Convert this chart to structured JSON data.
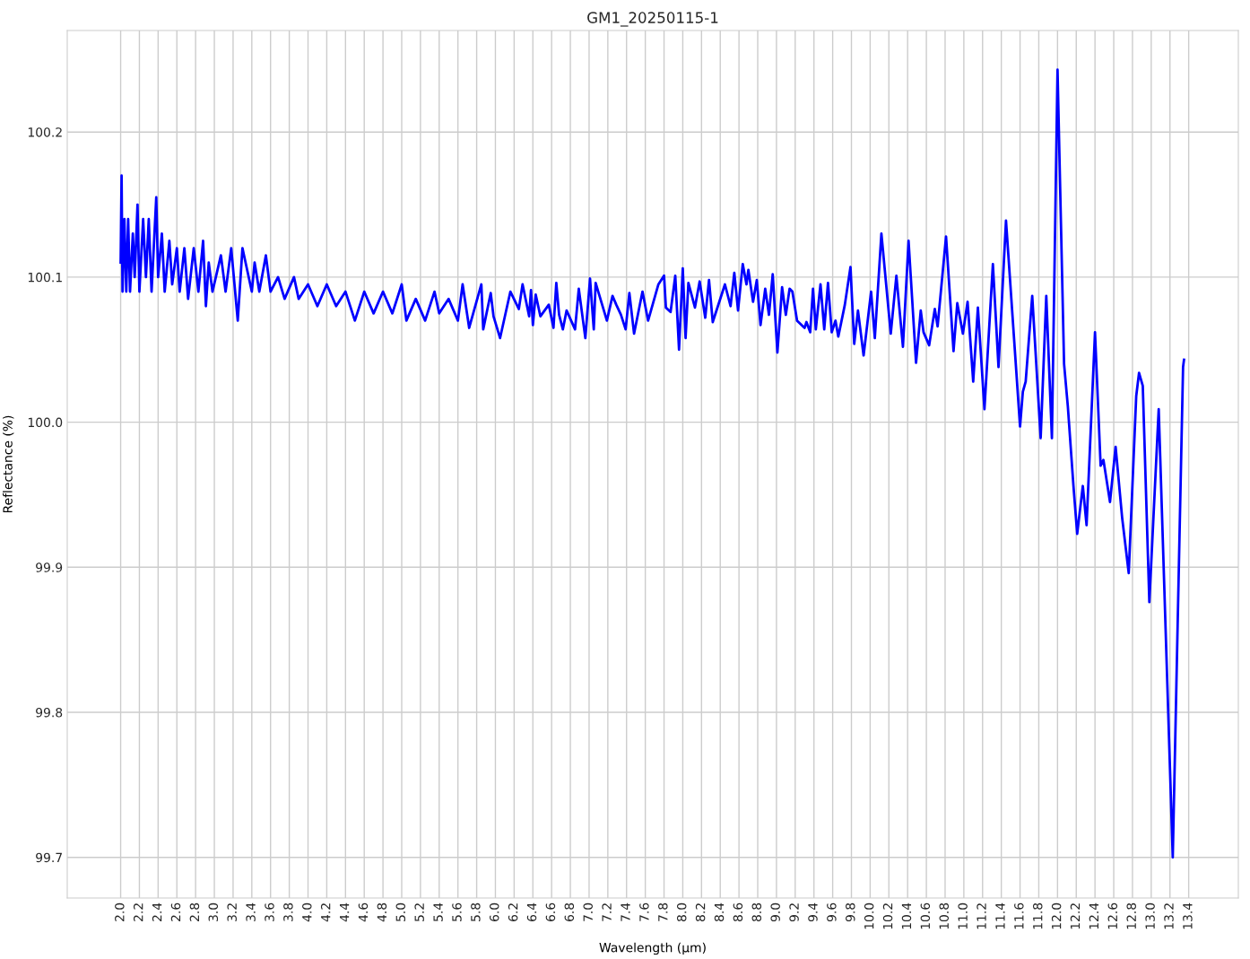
{
  "chart_data": {
    "type": "line",
    "title": "GM1_20250115-1",
    "xlabel": "Wavelength (μm)",
    "ylabel": "Reflectance (%)",
    "series": [
      {
        "color": "#0000ff",
        "x": [
          2.0,
          2.01,
          2.02,
          2.04,
          2.06,
          2.08,
          2.1,
          2.13,
          2.15,
          2.18,
          2.2,
          2.24,
          2.27,
          2.3,
          2.33,
          2.38,
          2.4,
          2.44,
          2.47,
          2.52,
          2.55,
          2.6,
          2.63,
          2.68,
          2.72,
          2.78,
          2.83,
          2.88,
          2.91,
          2.94,
          2.98,
          3.07,
          3.12,
          3.18,
          3.25,
          3.3,
          3.4,
          3.43,
          3.48,
          3.55,
          3.6,
          3.68,
          3.75,
          3.85,
          3.9,
          4.0,
          4.1,
          4.2,
          4.3,
          4.4,
          4.5,
          4.6,
          4.7,
          4.8,
          4.9,
          5.0,
          5.05,
          5.15,
          5.25,
          5.35,
          5.4,
          5.5,
          5.6,
          5.65,
          5.72,
          5.85,
          5.87,
          5.95,
          5.98,
          6.05,
          6.16,
          6.25,
          6.29,
          6.36,
          6.38,
          6.4,
          6.43,
          6.48,
          6.57,
          6.62,
          6.65,
          6.68,
          6.72,
          6.76,
          6.85,
          6.89,
          6.96,
          7.01,
          7.05,
          7.07,
          7.19,
          7.25,
          7.29,
          7.34,
          7.39,
          7.43,
          7.48,
          7.57,
          7.63,
          7.74,
          7.8,
          7.82,
          7.87,
          7.92,
          7.96,
          8.0,
          8.03,
          8.06,
          8.13,
          8.18,
          8.24,
          8.28,
          8.32,
          8.45,
          8.51,
          8.55,
          8.59,
          8.64,
          8.68,
          8.7,
          8.75,
          8.79,
          8.83,
          8.88,
          8.92,
          8.96,
          9.01,
          9.06,
          9.1,
          9.14,
          9.17,
          9.22,
          9.3,
          9.32,
          9.36,
          9.39,
          9.42,
          9.47,
          9.51,
          9.55,
          9.59,
          9.63,
          9.66,
          9.73,
          9.79,
          9.83,
          9.87,
          9.93,
          10.01,
          10.05,
          10.12,
          10.22,
          10.28,
          10.35,
          10.41,
          10.49,
          10.54,
          10.57,
          10.63,
          10.69,
          10.72,
          10.81,
          10.89,
          10.93,
          10.99,
          11.04,
          11.1,
          11.15,
          11.22,
          11.31,
          11.37,
          11.45,
          11.6,
          11.63,
          11.66,
          11.73,
          11.82,
          11.88,
          11.94,
          12.0,
          12.07,
          12.11,
          12.17,
          12.21,
          12.27,
          12.31,
          12.4,
          12.46,
          12.49,
          12.56,
          12.62,
          12.69,
          12.76,
          12.84,
          12.87,
          12.91,
          12.98,
          13.08,
          13.23,
          13.34,
          13.35
        ],
        "values": [
          100.11,
          100.17,
          100.09,
          100.14,
          100.09,
          100.14,
          100.09,
          100.13,
          100.1,
          100.15,
          100.09,
          100.14,
          100.1,
          100.14,
          100.09,
          100.155,
          100.1,
          100.13,
          100.09,
          100.125,
          100.095,
          100.12,
          100.09,
          100.12,
          100.085,
          100.12,
          100.09,
          100.125,
          100.08,
          100.11,
          100.09,
          100.115,
          100.09,
          100.12,
          100.07,
          100.12,
          100.09,
          100.11,
          100.09,
          100.115,
          100.09,
          100.1,
          100.085,
          100.1,
          100.085,
          100.095,
          100.08,
          100.095,
          100.08,
          100.09,
          100.07,
          100.09,
          100.075,
          100.09,
          100.075,
          100.095,
          100.07,
          100.085,
          100.07,
          100.09,
          100.075,
          100.085,
          100.07,
          100.095,
          100.065,
          100.095,
          100.064,
          100.089,
          100.073,
          100.058,
          100.09,
          100.078,
          100.095,
          100.073,
          100.091,
          100.067,
          100.088,
          100.073,
          100.081,
          100.065,
          100.096,
          100.074,
          100.064,
          100.077,
          100.064,
          100.092,
          100.058,
          100.099,
          100.064,
          100.096,
          100.07,
          100.087,
          100.081,
          100.074,
          100.064,
          100.089,
          100.061,
          100.09,
          100.07,
          100.095,
          100.101,
          100.079,
          100.076,
          100.101,
          100.05,
          100.106,
          100.058,
          100.096,
          100.079,
          100.097,
          100.072,
          100.098,
          100.069,
          100.095,
          100.08,
          100.103,
          100.077,
          100.109,
          100.095,
          100.105,
          100.083,
          100.098,
          100.067,
          100.092,
          100.074,
          100.102,
          100.048,
          100.093,
          100.074,
          100.092,
          100.09,
          100.07,
          100.065,
          100.069,
          100.062,
          100.092,
          100.064,
          100.095,
          100.064,
          100.096,
          100.062,
          100.07,
          100.059,
          100.081,
          100.107,
          100.054,
          100.077,
          100.046,
          100.09,
          100.058,
          100.13,
          100.061,
          100.101,
          100.052,
          100.125,
          100.041,
          100.077,
          100.062,
          100.053,
          100.078,
          100.066,
          100.128,
          100.049,
          100.082,
          100.061,
          100.083,
          100.028,
          100.079,
          100.009,
          100.109,
          100.038,
          100.139,
          99.997,
          100.021,
          100.028,
          100.087,
          99.989,
          100.087,
          99.989,
          100.243,
          100.04,
          100.011,
          99.956,
          99.923,
          99.956,
          99.929,
          100.062,
          99.97,
          99.974,
          99.945,
          99.983,
          99.934,
          99.896,
          100.018,
          100.034,
          100.025,
          99.876,
          100.009,
          99.7,
          100.038,
          100.043
        ]
      }
    ],
    "xlim": [
      1.43,
      13.93
    ],
    "ylim": [
      99.672,
      100.27
    ],
    "xticks": [
      {
        "value": 2,
        "label": "2.0"
      },
      2.2,
      2.4,
      2.6,
      2.8,
      {
        "value": 3,
        "label": "3.0"
      },
      3.2,
      3.4,
      3.6,
      3.8,
      {
        "value": 4,
        "label": "4.0"
      },
      4.2,
      4.4,
      4.6,
      4.8,
      {
        "value": 5,
        "label": "5.0"
      },
      5.2,
      5.4,
      5.6,
      5.8,
      {
        "value": 6,
        "label": "6.0"
      },
      6.2,
      6.4,
      6.6,
      6.8,
      {
        "value": 7,
        "label": "7.0"
      },
      7.2,
      7.4,
      7.6,
      7.8,
      {
        "value": 8,
        "label": "8.0"
      },
      8.2,
      8.4,
      8.6,
      8.8,
      {
        "value": 9,
        "label": "9.0"
      },
      9.2,
      9.4,
      9.6,
      9.8,
      {
        "value": 10,
        "label": "10.0"
      },
      10.2,
      10.4,
      10.6,
      10.8,
      {
        "value": 11,
        "label": "11.0"
      },
      11.2,
      11.4,
      11.6,
      11.8,
      {
        "value": 12,
        "label": "12.0"
      },
      12.2,
      12.4,
      12.6,
      12.8,
      {
        "value": 13,
        "label": "13.0"
      },
      13.2,
      13.4
    ],
    "yticks": [
      99.7,
      99.8,
      99.9,
      {
        "value": 100,
        "label": "100.0"
      },
      100.1,
      100.2
    ],
    "grid": true,
    "marker": "none",
    "line_style": "solid"
  }
}
